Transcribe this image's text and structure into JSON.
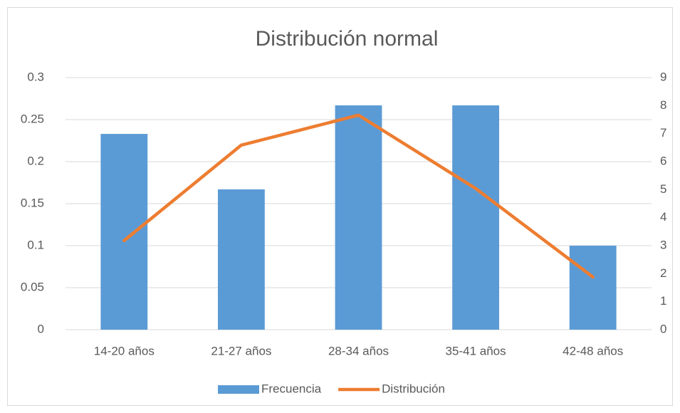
{
  "chart_data": {
    "type": "bar",
    "title": "Distribución normal",
    "categories": [
      "14-20 años",
      "21-27 años",
      "28-34 años",
      "35-41 años",
      "42-48 años"
    ],
    "series": [
      {
        "name": "Frecuencia",
        "color": "#5b9bd5",
        "type": "bar",
        "values": [
          0.233,
          0.167,
          0.267,
          0.267,
          0.1
        ]
      },
      {
        "name": "Distribución",
        "color": "#ed7d31",
        "type": "line",
        "axis": "y2",
        "values": [
          3.18,
          6.59,
          7.66,
          5.04,
          1.88
        ]
      }
    ],
    "ylim": [
      0,
      0.3
    ],
    "yticks": [
      0,
      0.05,
      0.1,
      0.15,
      0.2,
      0.25,
      0.3
    ],
    "y2lim": [
      0,
      9
    ],
    "y2ticks": [
      0,
      1,
      2,
      3,
      4,
      5,
      6,
      7,
      8,
      9
    ],
    "grid": true,
    "legend": "bottom"
  }
}
